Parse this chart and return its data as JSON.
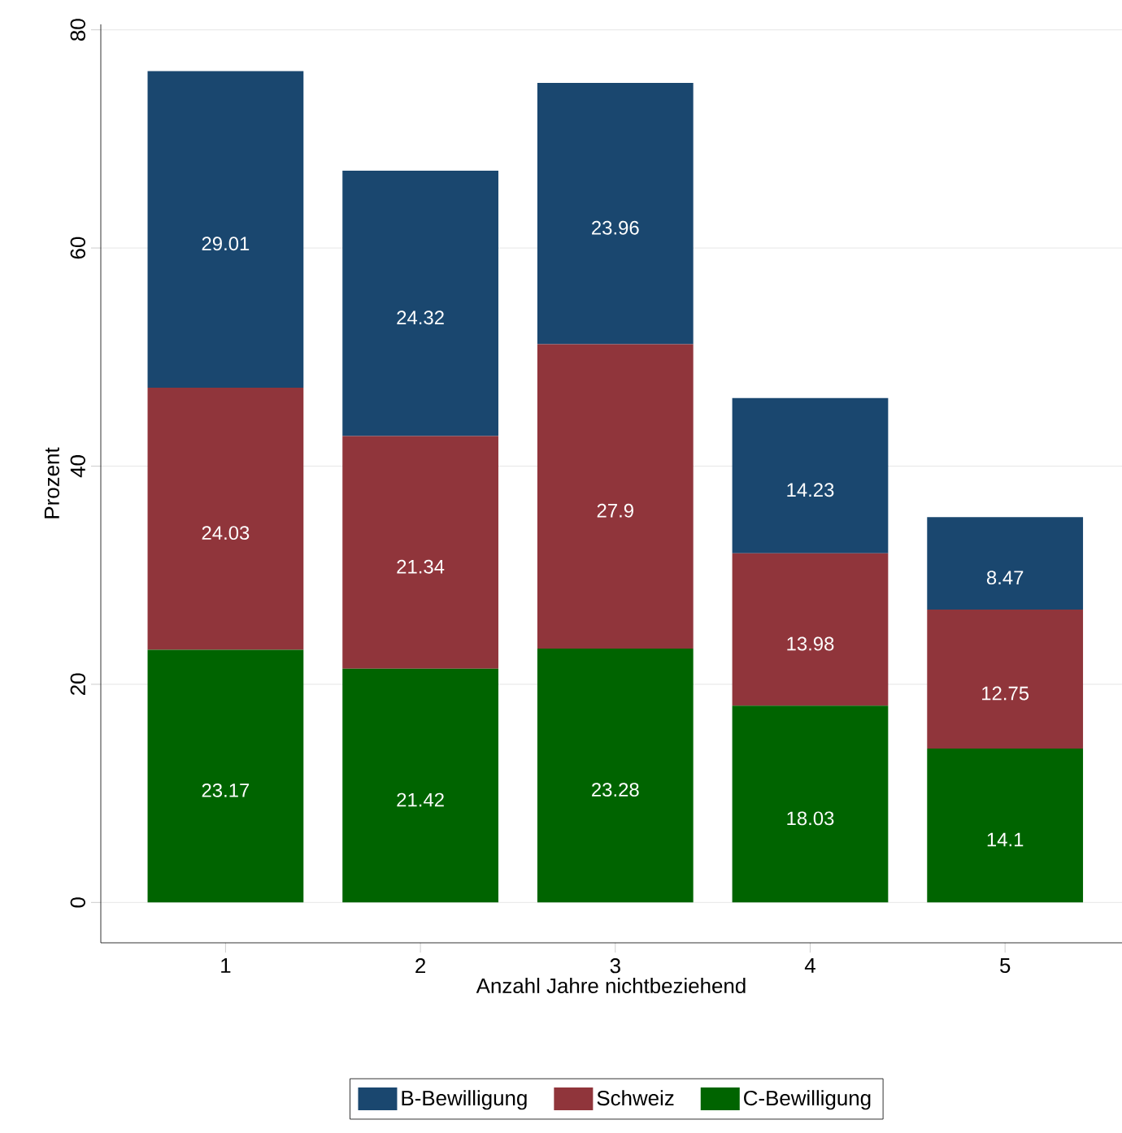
{
  "chart_data": {
    "type": "bar",
    "stacked": true,
    "xlabel": "Anzahl Jahre nichtbeziehend",
    "ylabel": "Prozent",
    "categories": [
      "1",
      "2",
      "3",
      "4",
      "5"
    ],
    "series": [
      {
        "name": "C-Bewilligung",
        "color": "#006400",
        "values": [
          23.17,
          21.42,
          23.28,
          18.03,
          14.1
        ]
      },
      {
        "name": "Schweiz",
        "color": "#90353b",
        "values": [
          24.03,
          21.34,
          27.9,
          13.98,
          12.75
        ]
      },
      {
        "name": "B-Bewilligung",
        "color": "#1a476f",
        "values": [
          29.01,
          24.32,
          23.96,
          14.23,
          8.47
        ]
      }
    ],
    "ylim": [
      -3.7,
      80.5
    ],
    "yticks": [
      0,
      20,
      40,
      60,
      80
    ],
    "grid": "y",
    "legend": "bottom",
    "data_labels": true
  }
}
